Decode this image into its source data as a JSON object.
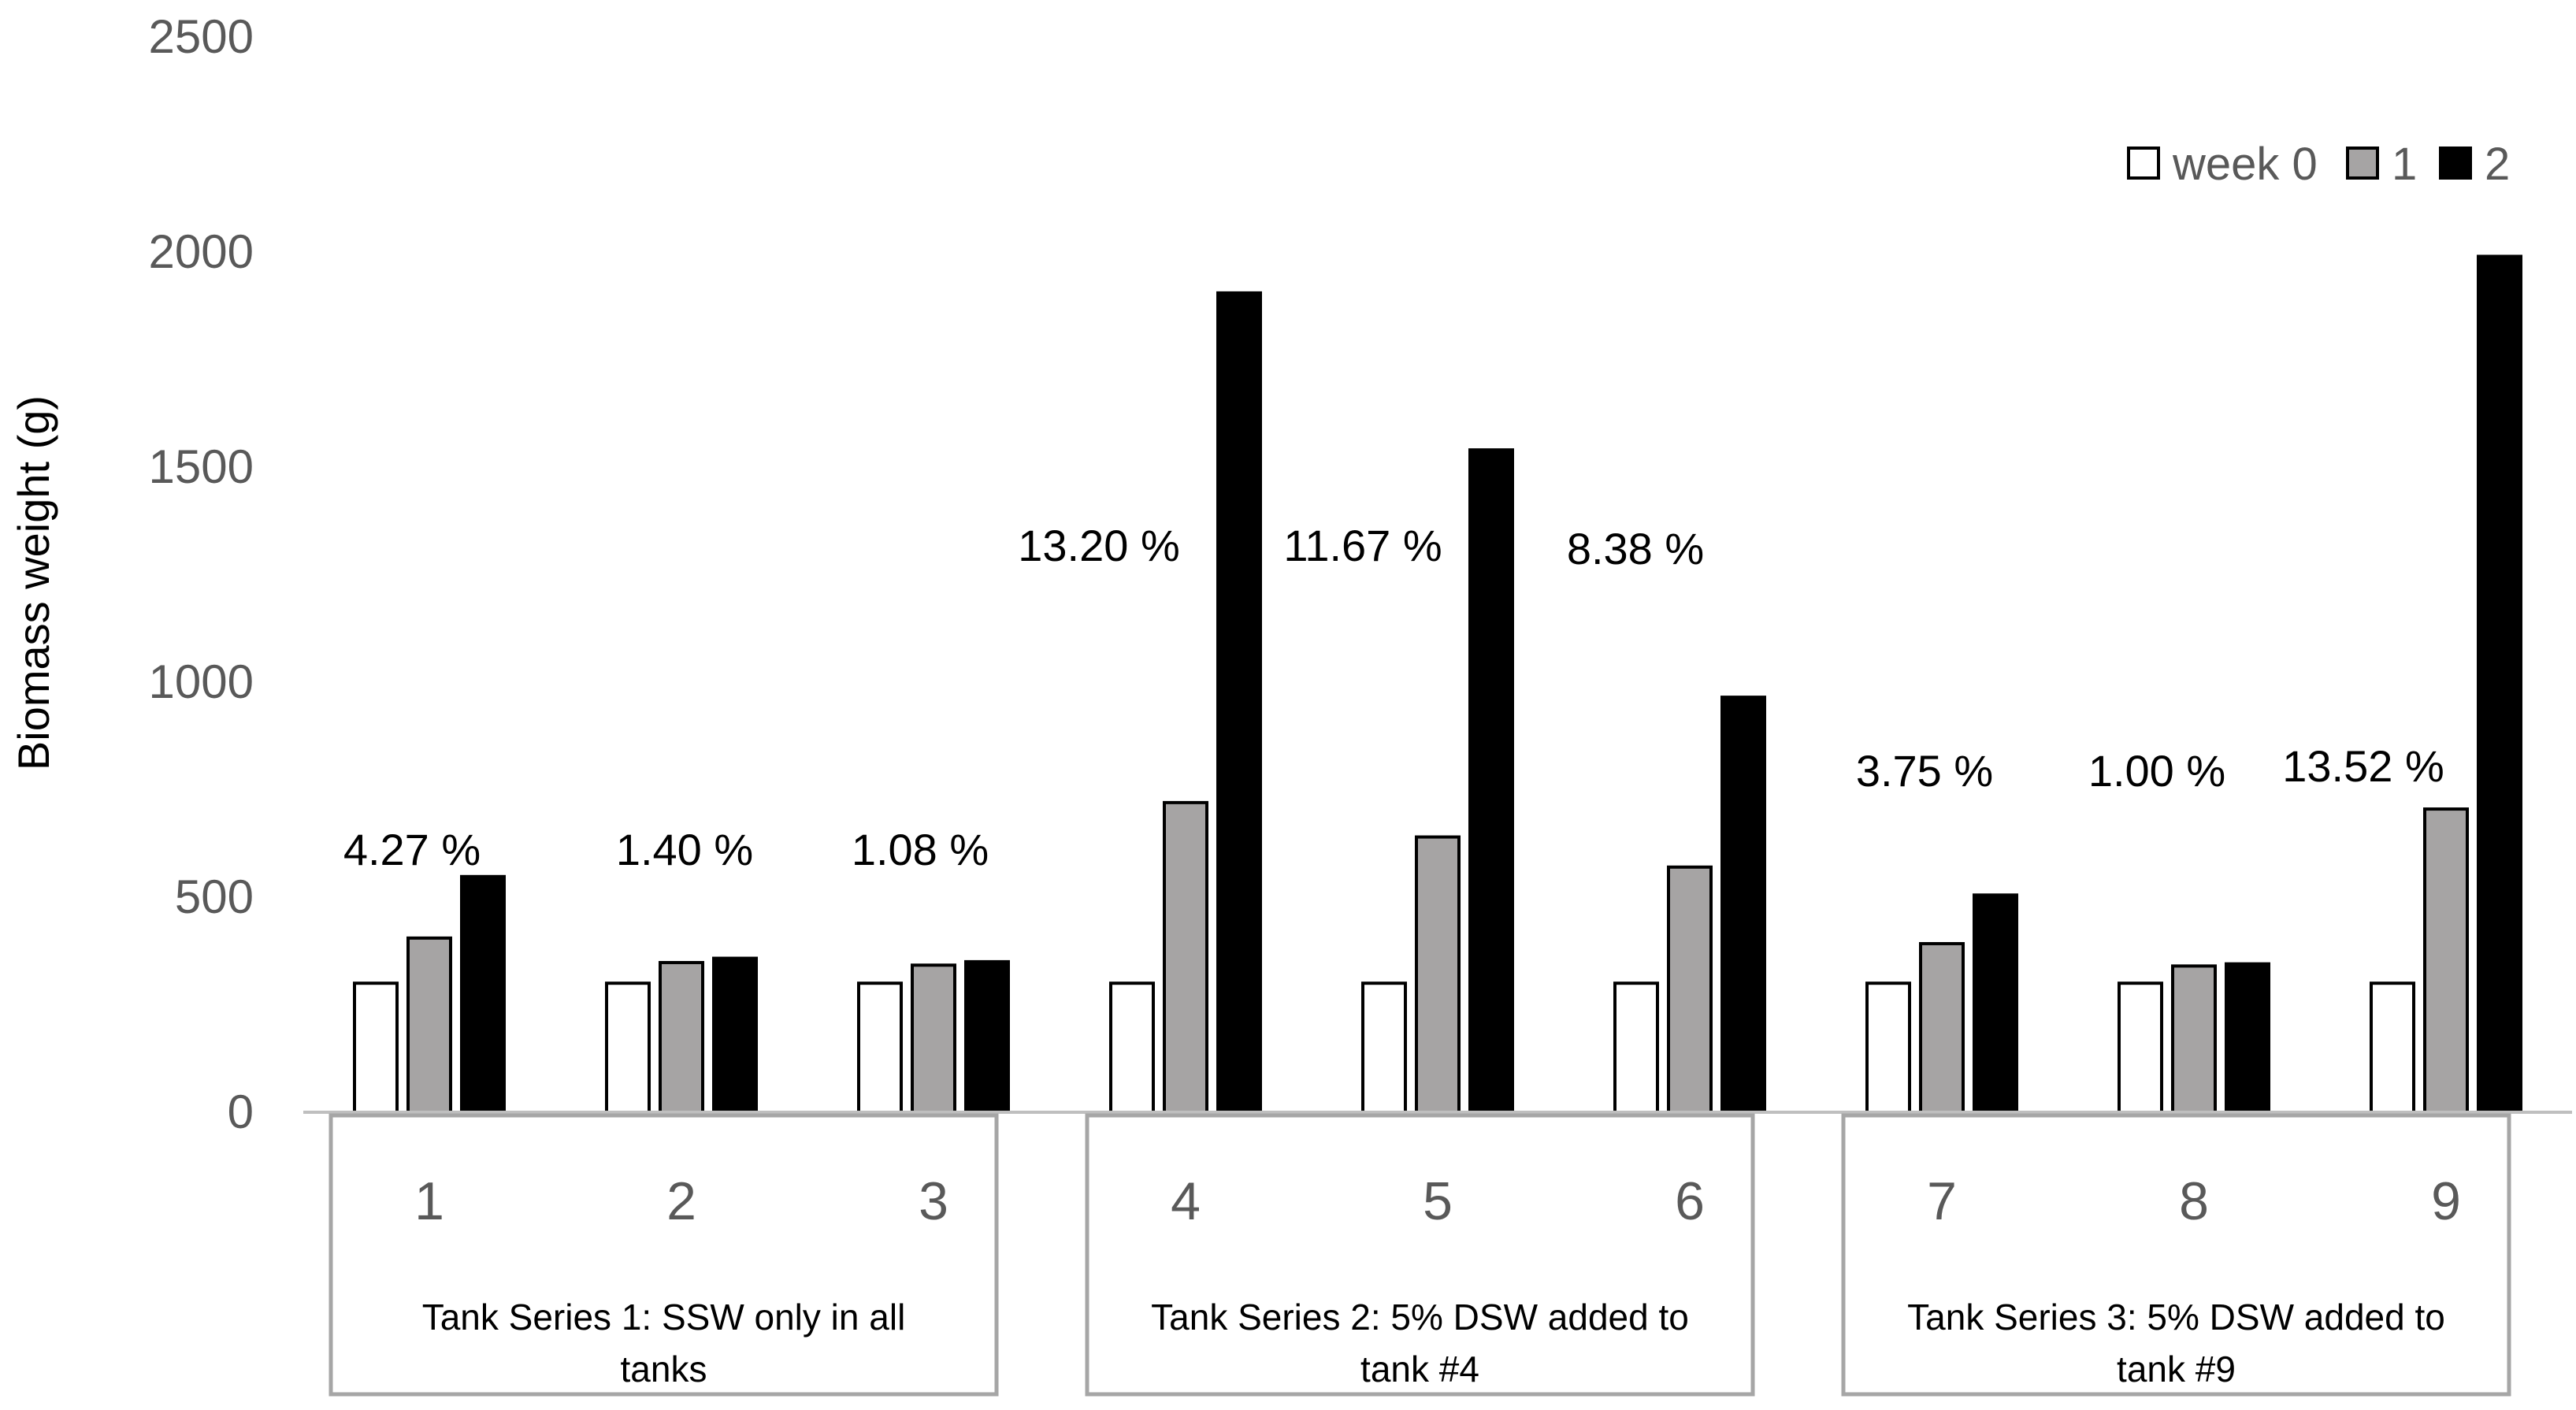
{
  "chart_data": {
    "type": "bar",
    "ylabel": "Biomass weight (g)",
    "ylim": [
      0,
      2500
    ],
    "yticks": [
      0,
      500,
      1000,
      1500,
      2000,
      2500
    ],
    "categories": [
      "1",
      "2",
      "3",
      "4",
      "5",
      "6",
      "7",
      "8",
      "9"
    ],
    "series": [
      {
        "name": "week 0",
        "color": "#ffffff",
        "values": [
          300,
          300,
          300,
          300,
          300,
          300,
          300,
          300,
          300
        ]
      },
      {
        "name": "1",
        "color": "#a6a4a4",
        "values": [
          405,
          348,
          342,
          720,
          640,
          570,
          392,
          340,
          705
        ]
      },
      {
        "name": "2",
        "color": "#000000",
        "values": [
          548,
          358,
          350,
          1905,
          1540,
          965,
          505,
          345,
          1990
        ]
      }
    ],
    "growth_labels": [
      "4.27 %",
      "1.40 %",
      "1.08 %",
      "13.20 %",
      "11.67 %",
      "8.38 %",
      "3.75 %",
      "1.00 %",
      "13.52 %"
    ],
    "groups": [
      {
        "label_line1": "Tank Series 1: SSW only in all",
        "label_line2": "tanks"
      },
      {
        "label_line1": "Tank Series 2: 5% DSW added to",
        "label_line2": "tank #4"
      },
      {
        "label_line1": "Tank Series 3: 5% DSW added to",
        "label_line2": "tank #9"
      }
    ],
    "legend_position": "top-right"
  }
}
